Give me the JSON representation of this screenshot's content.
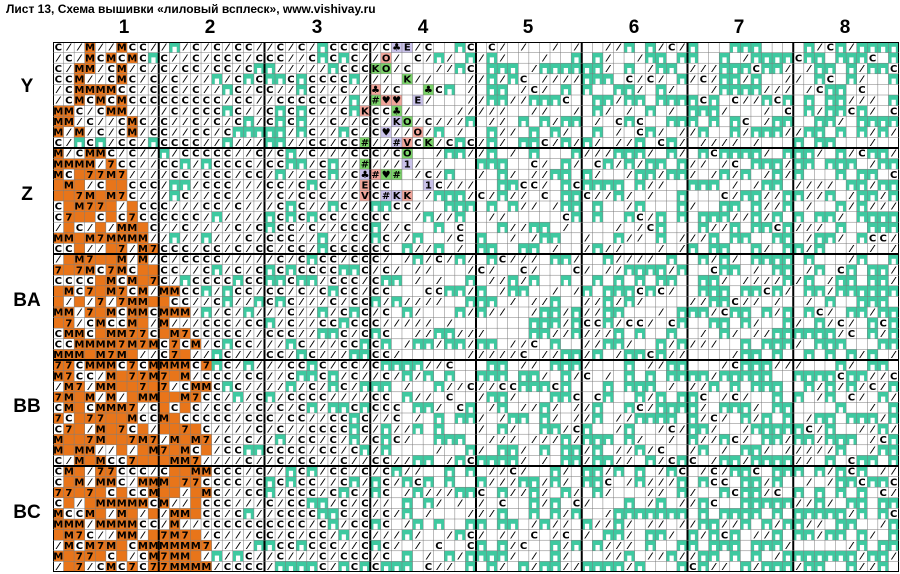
{
  "title": "Лист 13, Схема вышивки «лиловый всплеск», www.vishivay.ru",
  "column_labels": [
    "1",
    "2",
    "3",
    "4",
    "5",
    "6",
    "7",
    "8"
  ],
  "row_labels": [
    "Y",
    "Z",
    "BA",
    "BB",
    "BC"
  ],
  "legend_colors": {
    "orange": "#e8751a",
    "teal": "#3ec9a0",
    "lavender": "#c9c2ea",
    "salmon": "#f0a59a",
    "green": "#7bd36a",
    "grid_line": "#7a7a7a",
    "block_line": "#000000"
  },
  "symbol_glyphs": [
    "C",
    "⁄",
    "7",
    "M",
    "K",
    "V",
    "E",
    "O",
    "♥",
    "♣",
    "1",
    "#"
  ]
}
